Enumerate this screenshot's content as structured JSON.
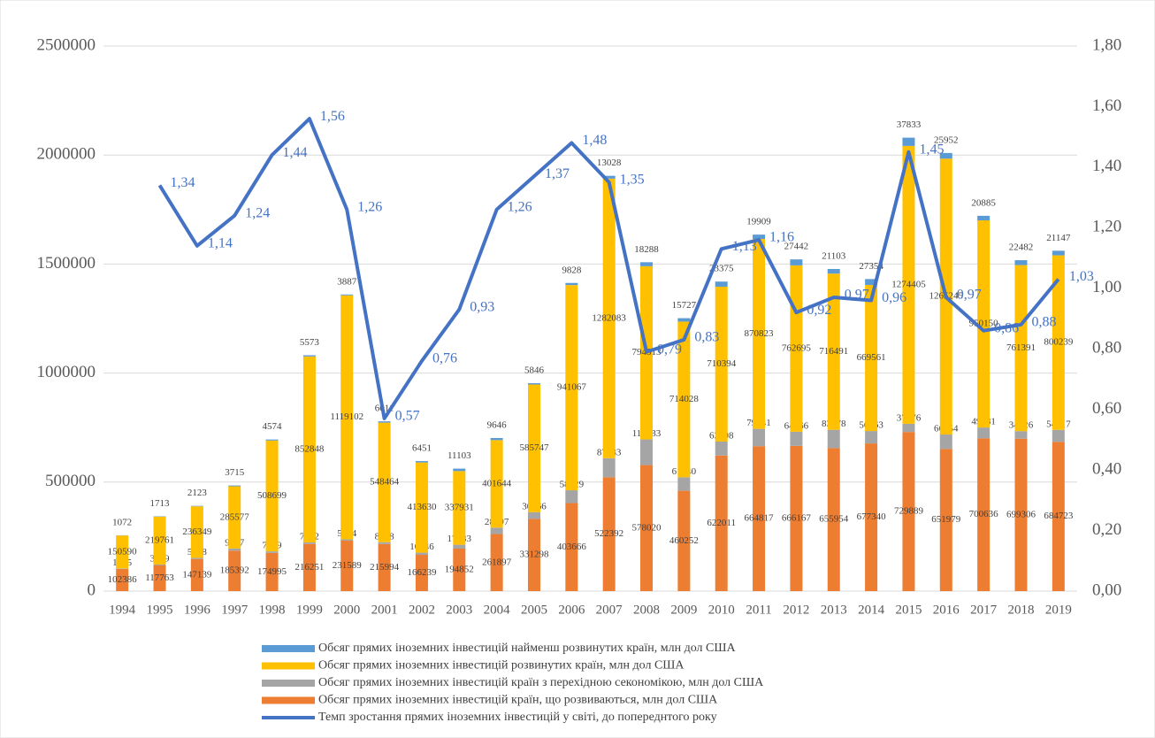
{
  "chart_data": {
    "type": "bar",
    "categories": [
      "1994",
      "1995",
      "1996",
      "1997",
      "1998",
      "1999",
      "2000",
      "2001",
      "2002",
      "2003",
      "2004",
      "2005",
      "2006",
      "2007",
      "2008",
      "2009",
      "2010",
      "2011",
      "2012",
      "2013",
      "2014",
      "2015",
      "2016",
      "2017",
      "2018",
      "2019"
    ],
    "ylim": [
      0,
      2500000
    ],
    "yticks": [
      0,
      500000,
      1000000,
      1500000,
      2000000,
      2500000
    ],
    "y2lim": [
      0,
      1.8
    ],
    "y2ticks": [
      {
        "value": 0,
        "label": "0,00"
      },
      {
        "value": 0.2,
        "label": "0,20"
      },
      {
        "value": 0.4,
        "label": "0,40"
      },
      {
        "value": 0.6,
        "label": "0,60"
      },
      {
        "value": 0.8,
        "label": "0,80"
      },
      {
        "value": 1,
        "label": "1,00"
      },
      {
        "value": 1.2,
        "label": "1,20"
      },
      {
        "value": 1.4,
        "label": "1,40"
      },
      {
        "value": 1.6,
        "label": "1,60"
      },
      {
        "value": 1.8,
        "label": "1,80"
      }
    ],
    "grid": true,
    "series": [
      {
        "name": "Обсяг прямих іноземних інвестицій найменш розвинутих країн, млн дол США",
        "color": "#5b9bd5",
        "values": [
          1072,
          1713,
          2123,
          3715,
          4574,
          5573,
          3887,
          6011,
          6451,
          11103,
          9646,
          5846,
          9828,
          13028,
          18288,
          15727,
          23375,
          19909,
          27442,
          21103,
          27354,
          37833,
          25952,
          20885,
          22482,
          21147
        ]
      },
      {
        "name": "Обсяг прямих іноземних інвестицій розвинутих країн, млн дол США",
        "color": "#ffc000",
        "values": [
          150590,
          219761,
          236349,
          285577,
          508699,
          852848,
          1119102,
          548464,
          413630,
          337931,
          401644,
          585747,
          941067,
          1282083,
          794313,
          714028,
          710394,
          870823,
          762695,
          716491,
          669561,
          1274405,
          1265245,
          950150,
          761391,
          800239
        ]
      },
      {
        "name": "Обсяг прямих іноземних інвестицій країн з перехідною секономікою, млн дол США",
        "color": "#a5a5a5",
        "values": [
          1935,
          3999,
          5338,
          9807,
          7169,
          7132,
          5924,
          8258,
          10046,
          17833,
          28997,
          30666,
          58829,
          87233,
          117733,
          61840,
          63798,
          79441,
          64966,
          83878,
          56963,
          37476,
          66254,
          49681,
          34526,
          54917
        ]
      },
      {
        "name": "Обсяг прямих іноземних інвестицій країн, що розвиваються, млн дол США",
        "color": "#ed7d31",
        "values": [
          102386,
          117763,
          147139,
          185392,
          174995,
          216251,
          231589,
          215994,
          166239,
          194852,
          261897,
          331298,
          403666,
          522392,
          578020,
          460252,
          622011,
          664817,
          666167,
          655954,
          677340,
          729889,
          651979,
          700636,
          699306,
          684723
        ]
      },
      {
        "name": "Темп зростання прямих іноземних інвестицій у світі, до попереднтого року",
        "color": "#4472c4",
        "type": "line",
        "axis": "y2",
        "values": [
          null,
          1.34,
          1.14,
          1.24,
          1.44,
          1.56,
          1.26,
          0.57,
          0.76,
          0.93,
          1.26,
          1.37,
          1.48,
          1.35,
          0.79,
          0.83,
          1.13,
          1.16,
          0.92,
          0.97,
          0.96,
          1.45,
          0.97,
          0.86,
          0.88,
          1.03
        ],
        "value_labels": [
          null,
          "1,34",
          "1,14",
          "1,24",
          "1,44",
          "1,56",
          "1,26",
          "0,57",
          "0,76",
          "0,93",
          "1,26",
          "1,37",
          "1,48",
          "1,35",
          "0,79",
          "0,83",
          "1,13",
          "1,16",
          "0,92",
          "0,97",
          "0,96",
          "1,45",
          "0,97",
          "0,86",
          "0,88",
          "1,03"
        ]
      }
    ]
  }
}
